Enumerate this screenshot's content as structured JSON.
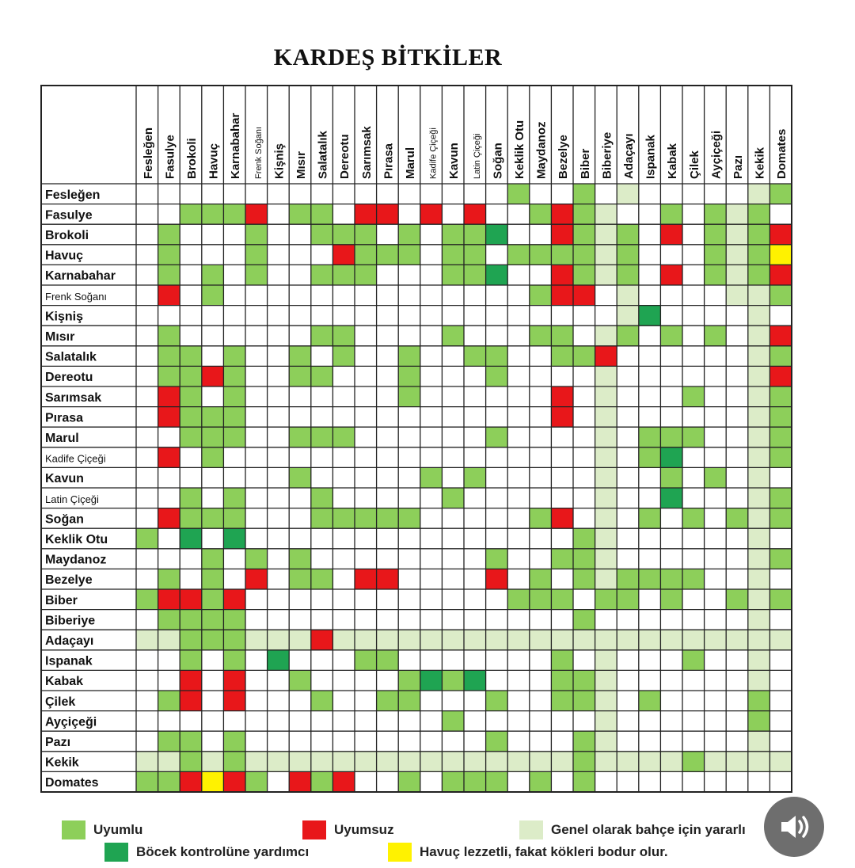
{
  "title": "KARDEŞ BİTKİLER",
  "colors": {
    "uyumlu": "#8dcf5a",
    "uyumsuz": "#e8171a",
    "genel": "#dcecc8",
    "bocek": "#1fa452",
    "havuc": "#fff200",
    "empty": "#ffffff",
    "border": "#222222"
  },
  "legend": [
    {
      "code": "G",
      "label": "Uyumlu"
    },
    {
      "code": "R",
      "label": "Uyumsuz"
    },
    {
      "code": "L",
      "label": "Genel olarak bahçe için yararlı"
    },
    {
      "code": "D",
      "label": "Böcek kontrolüne yardımcı"
    },
    {
      "code": "Y",
      "label": "Havuç lezzetli, fakat kökleri bodur olur."
    }
  ],
  "chart_data": {
    "type": "heatmap",
    "title": "KARDEŞ BİTKİLER",
    "codes": {
      "G": "Uyumlu",
      "R": "Uyumsuz",
      "L": "Genel olarak bahçe için yararlı",
      "D": "Böcek kontrolüne yardımcı",
      "Y": "Havuç lezzetli, fakat kökleri bodur olur.",
      "W": ""
    },
    "columns": [
      "Fesleğen",
      "Fasulye",
      "Brokoli",
      "Havuç",
      "Karnabahar",
      "Frenk Soğanı",
      "Kişniş",
      "Mısır",
      "Salatalık",
      "Dereotu",
      "Sarımsak",
      "Pırasa",
      "Marul",
      "Kadife Çiçeği",
      "Kavun",
      "Latin Çiçeği",
      "Soğan",
      "Keklik Otu",
      "Maydanoz",
      "Bezelye",
      "Biber",
      "Biberiye",
      "Adaçayı",
      "Ispanak",
      "Kabak",
      "Çilek",
      "Ayçiçeği",
      "Pazı",
      "Kekik",
      "Domates"
    ],
    "rows": [
      "Fesleğen",
      "Fasulye",
      "Brokoli",
      "Havuç",
      "Karnabahar",
      "Frenk Soğanı",
      "Kişniş",
      "Mısır",
      "Salatalık",
      "Dereotu",
      "Sarımsak",
      "Pırasa",
      "Marul",
      "Kadife Çiçeği",
      "Kavun",
      "Latin Çiçeği",
      "Soğan",
      "Keklik Otu",
      "Maydanoz",
      "Bezelye",
      "Biber",
      "Biberiye",
      "Adaçayı",
      "Ispanak",
      "Kabak",
      "Çilek",
      "Ayçiçeği",
      "Pazı",
      "Kekik",
      "Domates"
    ],
    "cells": [
      "WWWWWWWWWWWWWWWWWGWWGWLWWWWWLG",
      "WWGGGRWGGWRRWRWRWWGRGLWWGWGLGW",
      "WGWWWGWWGGGWGWGGDWWRGLGWRWGLGR",
      "WGWWWGWWWRGGGWGGWGGGGLGWWWGLGY",
      "WGWGWGWWGGGWWWGGDWWRGLGWRWGLGR",
      "WRWGWWWWWWWWWWWWWWGRRWLWWWWLLG",
      "WWWWWWWWWWWWWWWWWWWWWWLDWWWWLW",
      "WGWWWWWWGGWWWWGWWWGGWLGWGWGWLR",
      "WGGWGWWGWGWWGWWGGWWGGRWWWWWWLG",
      "WGGRGWWGGWWWGWWWGWWWWLWWWWWWLR",
      "WRGWGWWWWWWWGWWWWWWRWLWWWGWWLG",
      "WRGGGWWWWWWWWWWWWWWRWLWWWWWWLG",
      "WWGGGWWGGGWWWWWWGWWWWLWGGGWWLG",
      "WRWGWWWWWWWWWWWWWWWWWLWGDWWWLG",
      "WWWWWWWGWWWWWGWGWWWWWLWWGWGWLW",
      "WWGWGWWWGWWWWWGWWWWWWLWWDWWWLG",
      "WRGGGWWWGGGGGWWWWWGRWLWGWGWGLG",
      "GWDWDWWWWWWWWWWWWWWWGLWWWWWWLW",
      "WWWGWGWGWWWWWWWWGWWGGLWWWWWWLG",
      "WGWGWRWGGWRRWWWWRWGWGLGGGGWWLW",
      "GRRGRWWWWWWWWWWWWGGGWGGWGWWGLG",
      "WGGGGWWWWWWWWWWWWWWWGWWWWWWWLW",
      "LLGGGLLLRLLLLLLLLLLLLLLLLLLLLL",
      "WWGWGWDWWWGGWWWWWWWGWLWWWGWWLW",
      "WWRWRWWGWWWWGDGDWWWGGLWWWWWWLW",
      "WGRWRWWWGWWGGWWWGWWGGLWGWWWWGW",
      "WWWWWWWWWWWWWWGWWWWWWLWWWWWWGW",
      "WGGWGWWWWWWWWWWWGWWWGLWWWWWWLW",
      "LLGLGLLLLLLLLLLLLLLLGLLLLGLLLL",
      "GGRYRGWRGRWWGWGGGWGWGWWWWWWWWW"
    ]
  }
}
